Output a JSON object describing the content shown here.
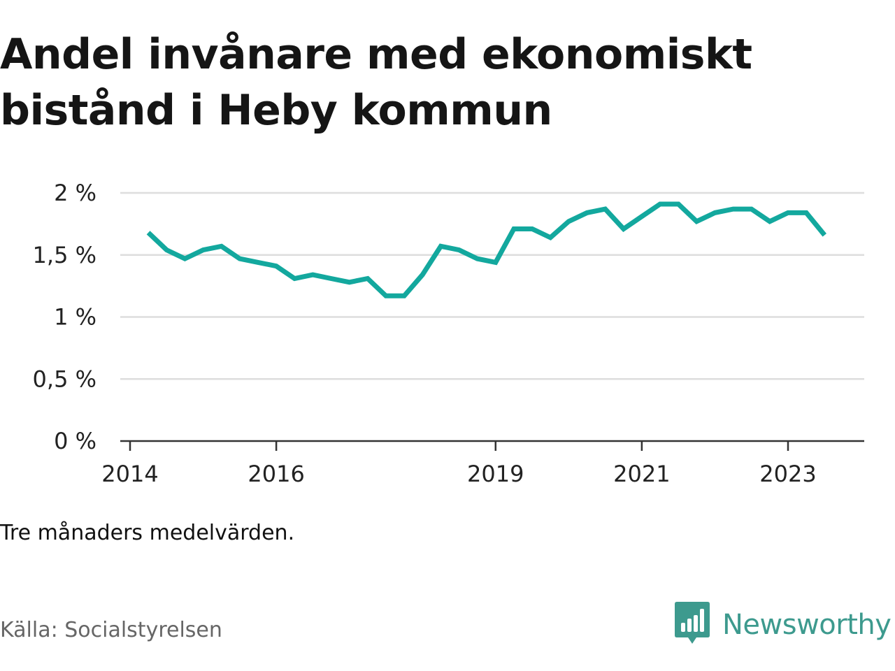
{
  "title": "Andel invånare med ekonomiskt bistånd i Heby kommun",
  "note": "Tre månaders medelvärden.",
  "source": "Källa: Socialstyrelsen",
  "brand": {
    "name": "Newsworthy",
    "icon": "newsworthy-logo-icon",
    "color": "#3d9a8e"
  },
  "colors": {
    "line": "#13a89e",
    "grid": "#dddddd",
    "axis": "#333333"
  },
  "chart_data": {
    "type": "line",
    "title": "Andel invånare med ekonomiskt bistånd i Heby kommun",
    "xlabel": "",
    "ylabel": "",
    "ylim": [
      0,
      2
    ],
    "xlim": [
      "2014-01",
      "2024-01"
    ],
    "y_ticks": [
      {
        "value": 0,
        "label": "0 %"
      },
      {
        "value": 0.5,
        "label": "0,5 %"
      },
      {
        "value": 1,
        "label": "1 %"
      },
      {
        "value": 1.5,
        "label": "1,5 %"
      },
      {
        "value": 2,
        "label": "2 %"
      }
    ],
    "x_ticks": [
      {
        "value": "2014-01",
        "label": "2014"
      },
      {
        "value": "2016-01",
        "label": "2016"
      },
      {
        "value": "2019-01",
        "label": "2019"
      },
      {
        "value": "2021-01",
        "label": "2021"
      },
      {
        "value": "2023-01",
        "label": "2023"
      }
    ],
    "grid": true,
    "series": [
      {
        "points": [
          {
            "x": "2014-04",
            "y": 1.68
          },
          {
            "x": "2014-07",
            "y": 1.54
          },
          {
            "x": "2014-10",
            "y": 1.47
          },
          {
            "x": "2015-01",
            "y": 1.54
          },
          {
            "x": "2015-04",
            "y": 1.57
          },
          {
            "x": "2015-07",
            "y": 1.47
          },
          {
            "x": "2015-10",
            "y": 1.44
          },
          {
            "x": "2016-01",
            "y": 1.41
          },
          {
            "x": "2016-04",
            "y": 1.31
          },
          {
            "x": "2016-07",
            "y": 1.34
          },
          {
            "x": "2016-10",
            "y": 1.31
          },
          {
            "x": "2017-01",
            "y": 1.28
          },
          {
            "x": "2017-04",
            "y": 1.31
          },
          {
            "x": "2017-07",
            "y": 1.17
          },
          {
            "x": "2017-10",
            "y": 1.17
          },
          {
            "x": "2018-01",
            "y": 1.34
          },
          {
            "x": "2018-04",
            "y": 1.57
          },
          {
            "x": "2018-07",
            "y": 1.54
          },
          {
            "x": "2018-10",
            "y": 1.47
          },
          {
            "x": "2019-01",
            "y": 1.44
          },
          {
            "x": "2019-04",
            "y": 1.71
          },
          {
            "x": "2019-07",
            "y": 1.71
          },
          {
            "x": "2019-10",
            "y": 1.64
          },
          {
            "x": "2020-01",
            "y": 1.77
          },
          {
            "x": "2020-04",
            "y": 1.84
          },
          {
            "x": "2020-07",
            "y": 1.87
          },
          {
            "x": "2020-10",
            "y": 1.71
          },
          {
            "x": "2021-01",
            "y": 1.81
          },
          {
            "x": "2021-04",
            "y": 1.91
          },
          {
            "x": "2021-07",
            "y": 1.91
          },
          {
            "x": "2021-10",
            "y": 1.77
          },
          {
            "x": "2022-01",
            "y": 1.84
          },
          {
            "x": "2022-04",
            "y": 1.87
          },
          {
            "x": "2022-07",
            "y": 1.87
          },
          {
            "x": "2022-10",
            "y": 1.77
          },
          {
            "x": "2023-01",
            "y": 1.84
          },
          {
            "x": "2023-04",
            "y": 1.84
          },
          {
            "x": "2023-07",
            "y": 1.66
          }
        ]
      }
    ]
  }
}
